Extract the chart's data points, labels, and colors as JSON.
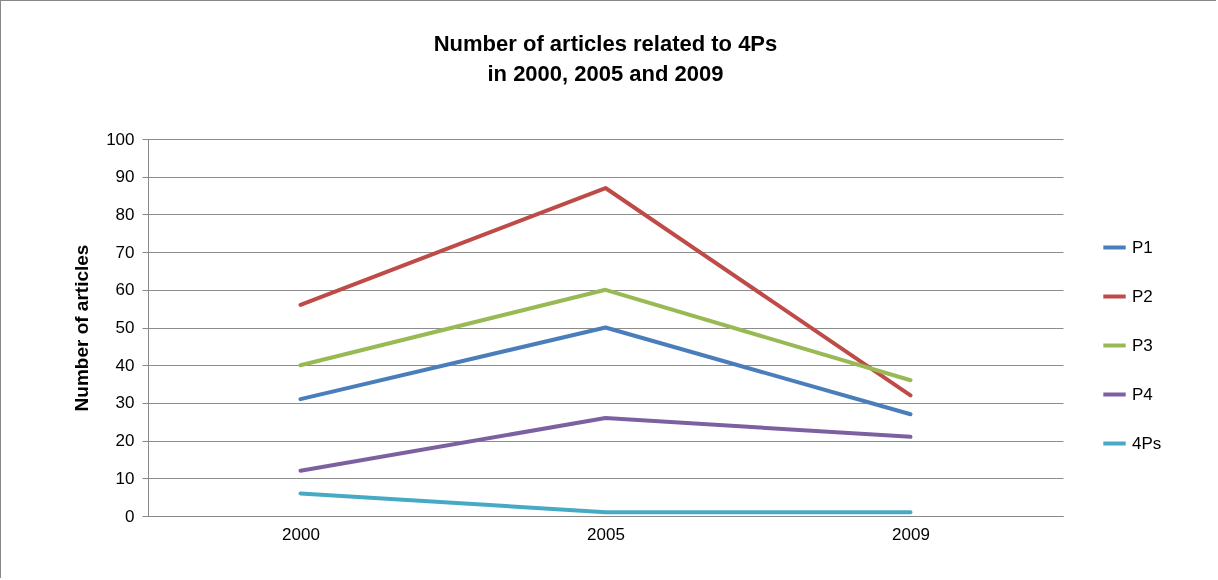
{
  "chart_data": {
    "type": "line",
    "title": "Number of articles related to 4Ps\nin 2000, 2005 and 2009",
    "ylabel": "Number of articles",
    "categories": [
      "2000",
      "2005",
      "2009"
    ],
    "series": [
      {
        "name": "P1",
        "color": "#4a7ebb",
        "values": [
          31,
          50,
          27
        ]
      },
      {
        "name": "P2",
        "color": "#be4b48",
        "values": [
          56,
          87,
          32
        ]
      },
      {
        "name": "P3",
        "color": "#98b954",
        "values": [
          40,
          60,
          36
        ]
      },
      {
        "name": "P4",
        "color": "#7d60a0",
        "values": [
          12,
          26,
          21
        ]
      },
      {
        "name": "4Ps",
        "color": "#46aac5",
        "values": [
          6,
          1,
          1
        ]
      }
    ],
    "ylim": [
      0,
      100
    ],
    "yticks": [
      0,
      10,
      20,
      30,
      40,
      50,
      60,
      70,
      80,
      90,
      100
    ],
    "grid": "y",
    "legend": "right",
    "marker": "none",
    "line_style": "solid"
  }
}
